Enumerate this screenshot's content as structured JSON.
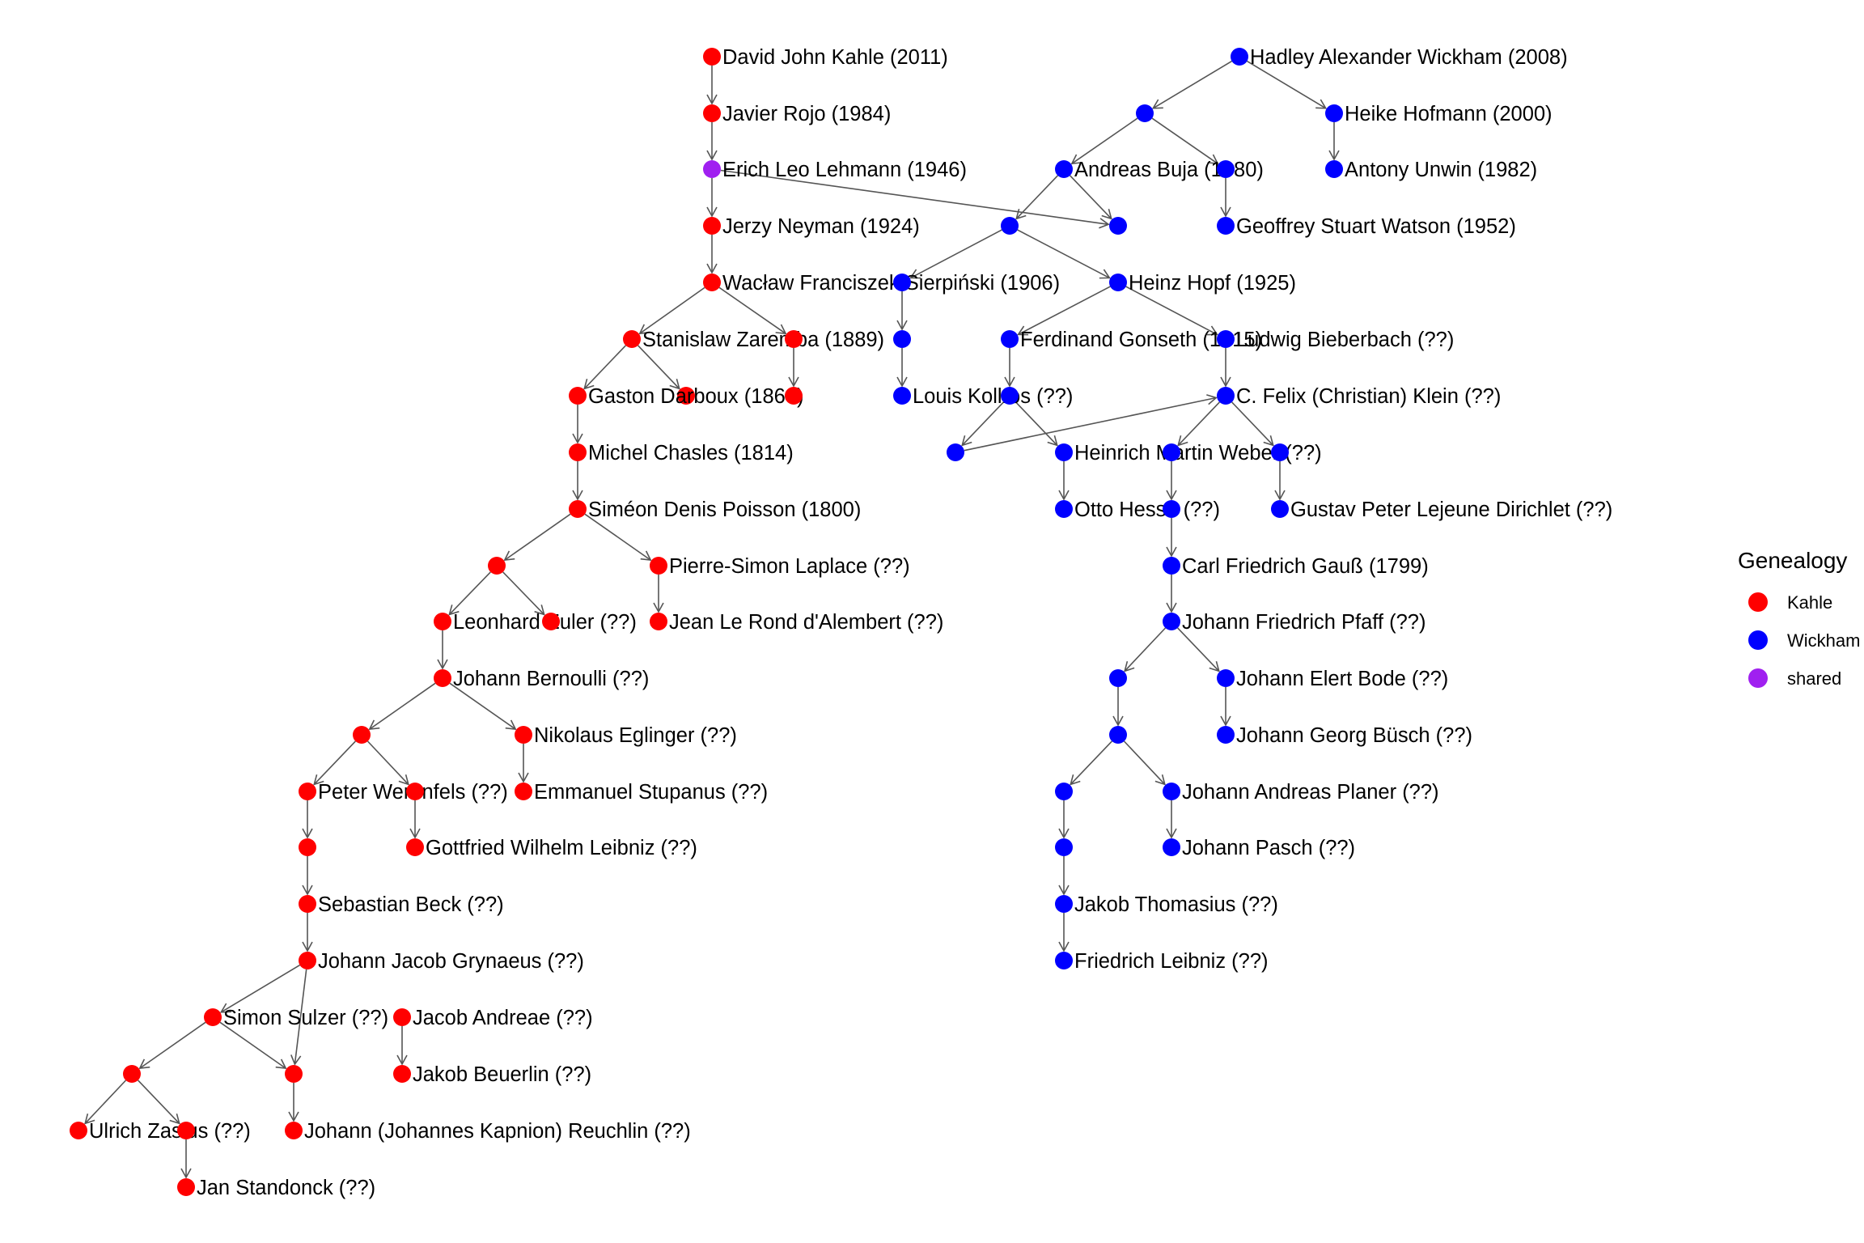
{
  "colors": {
    "Kahle": "#ff0000",
    "Wickham": "#0000ff",
    "shared": "#a020f0",
    "edge": "#555555"
  },
  "legend": {
    "title": "Genealogy",
    "items": [
      {
        "label": "Kahle",
        "group": "Kahle"
      },
      {
        "label": "Wickham",
        "group": "Wickham"
      },
      {
        "label": "shared",
        "group": "shared"
      }
    ]
  },
  "nodes": [
    {
      "id": "kahle",
      "label": "David John Kahle (2011)",
      "group": "Kahle"
    },
    {
      "id": "rojo",
      "label": "Javier Rojo (1984)",
      "group": "Kahle"
    },
    {
      "id": "lehmann",
      "label": "Erich Leo Lehmann (1946)",
      "group": "shared"
    },
    {
      "id": "neyman",
      "label": "Jerzy Neyman (1924)",
      "group": "Kahle"
    },
    {
      "id": "sierpinski",
      "label": "Wacław Franciszek Sierpiński (1906)",
      "group": "Kahle"
    },
    {
      "id": "zaremba",
      "label": "Stanislaw Zaremba (1889)",
      "group": "Kahle"
    },
    {
      "id": "k_z2",
      "label": "",
      "group": "Kahle"
    },
    {
      "id": "k_z1",
      "label": "",
      "group": "Kahle"
    },
    {
      "id": "darboux",
      "label": "Gaston Darboux (1866)",
      "group": "Kahle"
    },
    {
      "id": "k_z3",
      "label": "",
      "group": "Kahle"
    },
    {
      "id": "chasles",
      "label": "Michel Chasles (1814)",
      "group": "Kahle"
    },
    {
      "id": "poisson",
      "label": "Siméon Denis Poisson (1800)",
      "group": "Kahle"
    },
    {
      "id": "k_p1",
      "label": "",
      "group": "Kahle"
    },
    {
      "id": "laplace",
      "label": "Pierre-Simon Laplace (??)",
      "group": "Kahle"
    },
    {
      "id": "euler",
      "label": "Leonhard Euler (??)",
      "group": "Kahle"
    },
    {
      "id": "k_p2",
      "label": "",
      "group": "Kahle"
    },
    {
      "id": "dalembert",
      "label": "Jean Le Rond d'Alembert (??)",
      "group": "Kahle"
    },
    {
      "id": "bernoulli",
      "label": "Johann Bernoulli (??)",
      "group": "Kahle"
    },
    {
      "id": "k_b1",
      "label": "",
      "group": "Kahle"
    },
    {
      "id": "eglinger",
      "label": "Nikolaus Eglinger (??)",
      "group": "Kahle"
    },
    {
      "id": "werenfels",
      "label": "Peter Werenfels (??)",
      "group": "Kahle"
    },
    {
      "id": "k_b2",
      "label": "",
      "group": "Kahle"
    },
    {
      "id": "stupanus",
      "label": "Emmanuel Stupanus (??)",
      "group": "Kahle"
    },
    {
      "id": "k_w1",
      "label": "",
      "group": "Kahle"
    },
    {
      "id": "leibniz_g",
      "label": "Gottfried Wilhelm Leibniz (??)",
      "group": "Kahle"
    },
    {
      "id": "beck",
      "label": "Sebastian Beck (??)",
      "group": "Kahle"
    },
    {
      "id": "grynaeus",
      "label": "Johann Jacob Grynaeus (??)",
      "group": "Kahle"
    },
    {
      "id": "sulzer",
      "label": "Simon Sulzer (??)",
      "group": "Kahle"
    },
    {
      "id": "andreae",
      "label": "Jacob Andreae (??)",
      "group": "Kahle"
    },
    {
      "id": "k_s1",
      "label": "",
      "group": "Kahle"
    },
    {
      "id": "k_s2",
      "label": "",
      "group": "Kahle"
    },
    {
      "id": "beuerlin",
      "label": "Jakob Beuerlin (??)",
      "group": "Kahle"
    },
    {
      "id": "zasius",
      "label": "Ulrich Zasius (??)",
      "group": "Kahle"
    },
    {
      "id": "k_s3",
      "label": "",
      "group": "Kahle"
    },
    {
      "id": "reuchlin",
      "label": "Johann (Johannes Kapnion) Reuchlin (??)",
      "group": "Kahle"
    },
    {
      "id": "standonck",
      "label": "Jan Standonck (??)",
      "group": "Kahle"
    },
    {
      "id": "wickham",
      "label": "Hadley Alexander Wickham (2008)",
      "group": "Wickham"
    },
    {
      "id": "w_a",
      "label": "",
      "group": "Wickham"
    },
    {
      "id": "hofmann",
      "label": "Heike Hofmann (2000)",
      "group": "Wickham"
    },
    {
      "id": "buja",
      "label": "Andreas Buja (1980)",
      "group": "Wickham"
    },
    {
      "id": "w_b",
      "label": "",
      "group": "Wickham"
    },
    {
      "id": "unwin",
      "label": "Antony Unwin (1982)",
      "group": "Wickham"
    },
    {
      "id": "w_c",
      "label": "",
      "group": "Wickham"
    },
    {
      "id": "w_d",
      "label": "",
      "group": "Wickham"
    },
    {
      "id": "watson",
      "label": "Geoffrey Stuart Watson (1952)",
      "group": "Wickham"
    },
    {
      "id": "w_e",
      "label": "",
      "group": "Wickham"
    },
    {
      "id": "hopf",
      "label": "Heinz Hopf (1925)",
      "group": "Wickham"
    },
    {
      "id": "gonseth",
      "label": "Ferdinand Gonseth (1915)",
      "group": "Wickham"
    },
    {
      "id": "bieberbach",
      "label": "Ludwig Bieberbach (??)",
      "group": "Wickham"
    },
    {
      "id": "kollros",
      "label": "Louis Kollros (??)",
      "group": "Wickham"
    },
    {
      "id": "w_g",
      "label": "",
      "group": "Wickham"
    },
    {
      "id": "klein",
      "label": "C. Felix (Christian) Klein (??)",
      "group": "Wickham"
    },
    {
      "id": "w_h",
      "label": "",
      "group": "Wickham"
    },
    {
      "id": "weber",
      "label": "Heinrich Martin Weber (??)",
      "group": "Wickham"
    },
    {
      "id": "w_i",
      "label": "",
      "group": "Wickham"
    },
    {
      "id": "w_j",
      "label": "",
      "group": "Wickham"
    },
    {
      "id": "hesse",
      "label": "Otto Hesse (??)",
      "group": "Wickham"
    },
    {
      "id": "w_k",
      "label": "",
      "group": "Wickham"
    },
    {
      "id": "dirichlet",
      "label": "Gustav Peter Lejeune Dirichlet (??)",
      "group": "Wickham"
    },
    {
      "id": "gauss",
      "label": "Carl Friedrich Gauß (1799)",
      "group": "Wickham"
    },
    {
      "id": "pfaff",
      "label": "Johann Friedrich Pfaff (??)",
      "group": "Wickham"
    },
    {
      "id": "w_l",
      "label": "",
      "group": "Wickham"
    },
    {
      "id": "bode",
      "label": "Johann Elert Bode (??)",
      "group": "Wickham"
    },
    {
      "id": "w_m",
      "label": "",
      "group": "Wickham"
    },
    {
      "id": "busch",
      "label": "Johann Georg Büsch (??)",
      "group": "Wickham"
    },
    {
      "id": "w_n",
      "label": "",
      "group": "Wickham"
    },
    {
      "id": "planer",
      "label": "Johann Andreas Planer (??)",
      "group": "Wickham"
    },
    {
      "id": "w_o",
      "label": "",
      "group": "Wickham"
    },
    {
      "id": "pasch",
      "label": "Johann Pasch (??)",
      "group": "Wickham"
    },
    {
      "id": "thomasius",
      "label": "Jakob Thomasius (??)",
      "group": "Wickham"
    },
    {
      "id": "leibniz_f",
      "label": "Friedrich Leibniz (??)",
      "group": "Wickham"
    }
  ],
  "edges": [
    [
      "kahle",
      "rojo"
    ],
    [
      "rojo",
      "lehmann"
    ],
    [
      "lehmann",
      "neyman"
    ],
    [
      "lehmann",
      "w_e"
    ],
    [
      "neyman",
      "sierpinski"
    ],
    [
      "sierpinski",
      "zaremba"
    ],
    [
      "sierpinski",
      "k_z2"
    ],
    [
      "zaremba",
      "darboux"
    ],
    [
      "zaremba",
      "k_z1"
    ],
    [
      "k_z2",
      "k_z3"
    ],
    [
      "darboux",
      "chasles"
    ],
    [
      "chasles",
      "poisson"
    ],
    [
      "poisson",
      "k_p1"
    ],
    [
      "poisson",
      "laplace"
    ],
    [
      "k_p1",
      "euler"
    ],
    [
      "k_p1",
      "k_p2"
    ],
    [
      "laplace",
      "dalembert"
    ],
    [
      "euler",
      "bernoulli"
    ],
    [
      "bernoulli",
      "k_b1"
    ],
    [
      "bernoulli",
      "eglinger"
    ],
    [
      "k_b1",
      "werenfels"
    ],
    [
      "k_b1",
      "k_b2"
    ],
    [
      "eglinger",
      "stupanus"
    ],
    [
      "werenfels",
      "k_w1"
    ],
    [
      "k_b2",
      "leibniz_g"
    ],
    [
      "k_w1",
      "beck"
    ],
    [
      "beck",
      "grynaeus"
    ],
    [
      "grynaeus",
      "sulzer"
    ],
    [
      "grynaeus",
      "k_s2"
    ],
    [
      "andreae",
      "beuerlin"
    ],
    [
      "sulzer",
      "k_s1"
    ],
    [
      "sulzer",
      "k_s2b"
    ],
    [
      "k_s1",
      "zasius"
    ],
    [
      "k_s1",
      "k_s3"
    ],
    [
      "k_s3",
      "standonck"
    ],
    [
      "wickham",
      "w_a"
    ],
    [
      "wickham",
      "hofmann"
    ],
    [
      "w_a",
      "buja"
    ],
    [
      "w_a",
      "w_b"
    ],
    [
      "hofmann",
      "unwin"
    ],
    [
      "buja",
      "w_c"
    ],
    [
      "buja",
      "w_d"
    ],
    [
      "w_b",
      "watson"
    ],
    [
      "w_c",
      "w_e"
    ],
    [
      "w_c",
      "hopf"
    ],
    [
      "w_e",
      "gonseth"
    ],
    [
      "hopf",
      "gonseth"
    ],
    [
      "hopf",
      "bieberbach"
    ],
    [
      "gonseth",
      "kollros"
    ],
    [
      "w_f",
      "w_g"
    ],
    [
      "bieberbach",
      "klein"
    ],
    [
      "w_g",
      "w_h"
    ],
    [
      "w_g",
      "weber"
    ],
    [
      "w_h",
      "klein"
    ],
    [
      "klein",
      "w_i"
    ],
    [
      "klein",
      "w_j"
    ],
    [
      "weber",
      "hesse"
    ],
    [
      "w_i",
      "w_k"
    ],
    [
      "w_j",
      "dirichlet"
    ],
    [
      "w_k",
      "gauss"
    ],
    [
      "gauss",
      "pfaff"
    ],
    [
      "pfaff",
      "w_l"
    ],
    [
      "pfaff",
      "bode"
    ],
    [
      "w_l",
      "w_m"
    ],
    [
      "bode",
      "busch"
    ],
    [
      "w_m",
      "w_n"
    ],
    [
      "w_m",
      "planer"
    ],
    [
      "w_n",
      "w_o"
    ],
    [
      "planer",
      "pasch"
    ],
    [
      "w_o",
      "thomasius"
    ],
    [
      "thomasius",
      "leibniz_f"
    ]
  ]
}
